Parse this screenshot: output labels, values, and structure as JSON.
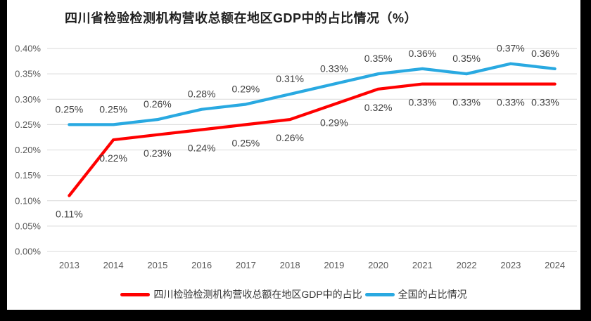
{
  "window": {
    "outer_bg": "#000000",
    "panel_bg": "#ffffff"
  },
  "chart_data": {
    "type": "line",
    "title": "四川省检验检测机构营收总额在地区GDP中的占比情况（%）",
    "categories": [
      "2013",
      "2014",
      "2015",
      "2016",
      "2017",
      "2018",
      "2019",
      "2020",
      "2021",
      "2022",
      "2023",
      "2024"
    ],
    "y_ticks": [
      "0.40%",
      "0.35%",
      "0.30%",
      "0.25%",
      "0.20%",
      "0.15%",
      "0.10%",
      "0.05%",
      "0.00%"
    ],
    "ylim_percent": [
      0.0,
      0.4
    ],
    "grid": true,
    "legend_position": "bottom",
    "series": [
      {
        "name": "四川检验检测机构营收总额在地区GDP中的占比",
        "color": "#FF0000",
        "values_percent": [
          0.11,
          0.22,
          0.23,
          0.24,
          0.25,
          0.26,
          0.29,
          0.32,
          0.33,
          0.33,
          0.33,
          0.33
        ],
        "data_labels": [
          "0.11%",
          "0.22%",
          "0.23%",
          "0.24%",
          "0.25%",
          "0.26%",
          "0.29%",
          "0.32%",
          "0.33%",
          "0.33%",
          "0.33%",
          "0.33%"
        ],
        "label_position": "below"
      },
      {
        "name": "全国的占比情况",
        "color": "#29A9E1",
        "values_percent": [
          0.25,
          0.25,
          0.26,
          0.28,
          0.29,
          0.31,
          0.33,
          0.35,
          0.36,
          0.35,
          0.37,
          0.36
        ],
        "data_labels": [
          "0.25%",
          "0.25%",
          "0.26%",
          "0.28%",
          "0.29%",
          "0.31%",
          "0.33%",
          "0.35%",
          "0.36%",
          "0.35%",
          "0.37%",
          "0.36%"
        ],
        "label_position": "above"
      }
    ],
    "styles": {
      "grid_color": "#D9D9D9",
      "axis_label_color": "#595959",
      "data_label_color": "#404040",
      "title_color": "#1F1F1F",
      "legend_text_color": "#333333"
    }
  }
}
